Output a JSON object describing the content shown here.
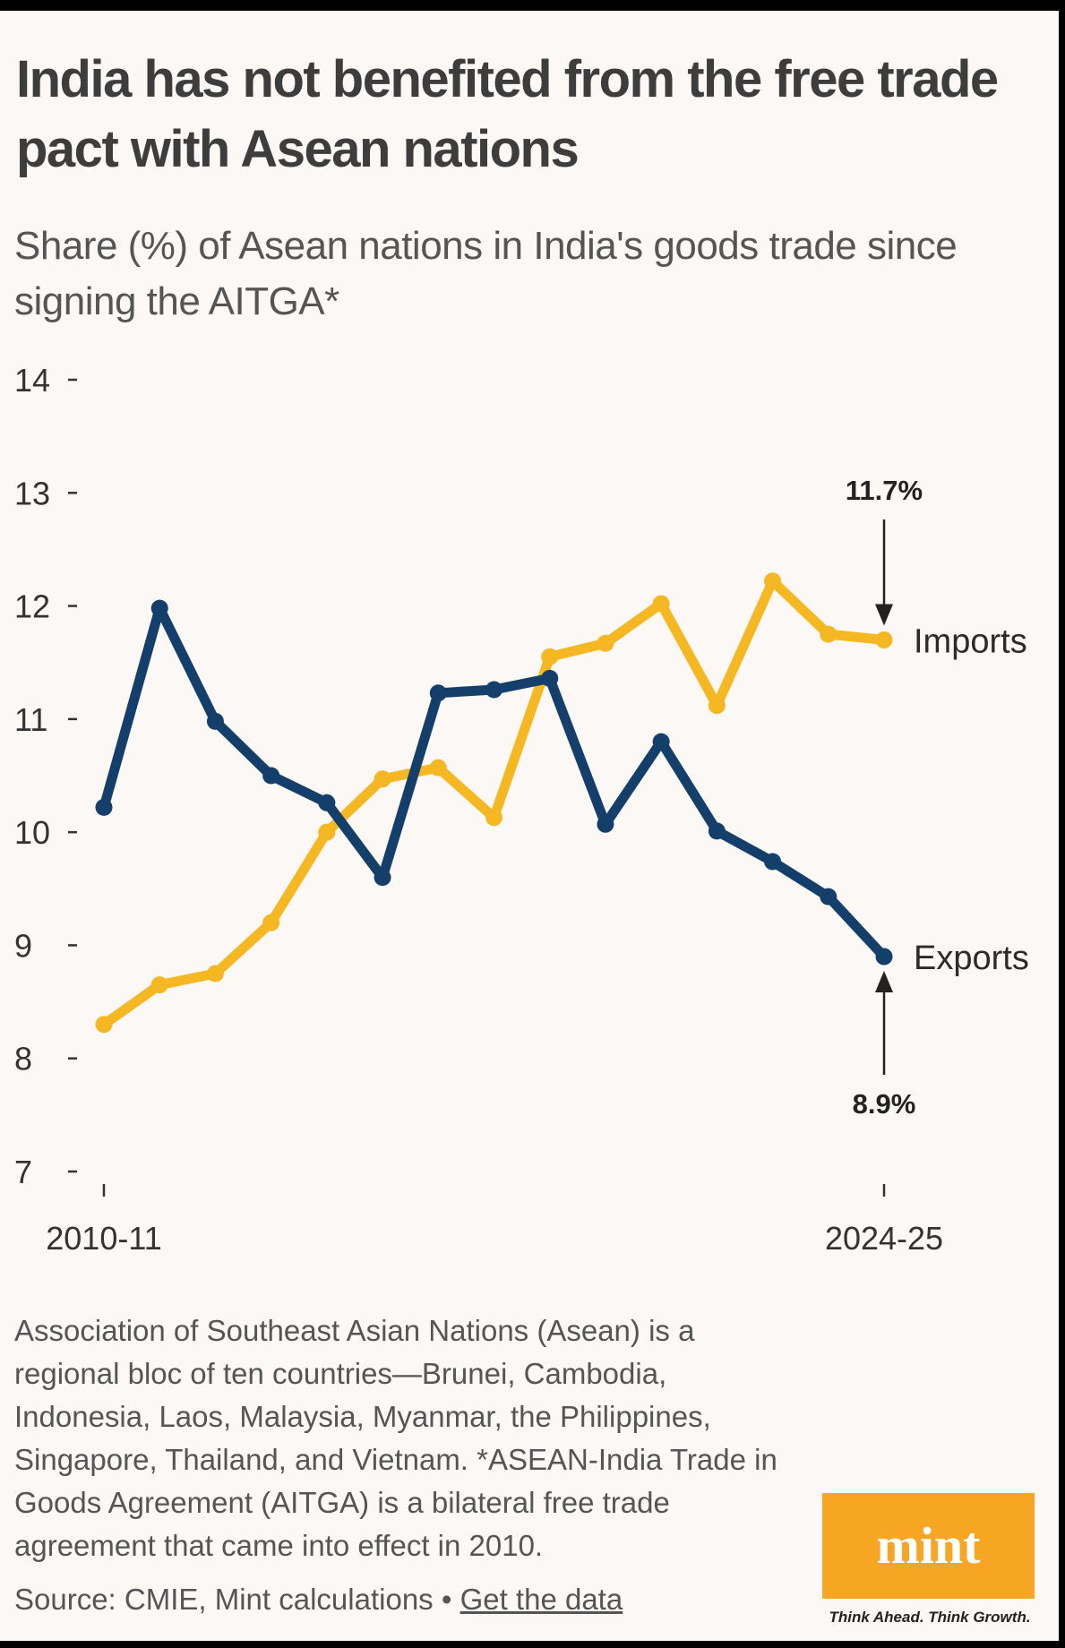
{
  "title": "India has not benefited from the free trade pact with Asean nations",
  "subtitle": "Share (%) of Asean nations in India's goods trade since signing the AITGA*",
  "colors": {
    "imports": "#f5b722",
    "exports": "#143f6b",
    "background": "#fbf8f6",
    "logo": "#f6a623"
  },
  "chart_data": {
    "type": "line",
    "title": "Share (%) of Asean nations in India's goods trade since signing the AITGA*",
    "xlabel": "",
    "ylabel": "",
    "x": [
      "2010-11",
      "2011-12",
      "2012-13",
      "2013-14",
      "2014-15",
      "2015-16",
      "2016-17",
      "2017-18",
      "2018-19",
      "2019-20",
      "2020-21",
      "2021-22",
      "2022-23",
      "2023-24",
      "2024-25"
    ],
    "x_tick_labels": [
      "2010-11",
      "2024-25"
    ],
    "ylim": [
      7,
      14
    ],
    "y_ticks": [
      7,
      8,
      9,
      10,
      11,
      12,
      13,
      14
    ],
    "series": [
      {
        "name": "Imports",
        "values": [
          8.3,
          8.65,
          8.75,
          9.2,
          10.0,
          10.47,
          10.57,
          10.13,
          11.55,
          11.67,
          12.02,
          11.12,
          12.22,
          11.75,
          11.7
        ]
      },
      {
        "name": "Exports",
        "values": [
          10.22,
          11.98,
          10.98,
          10.5,
          10.26,
          9.6,
          11.23,
          11.26,
          11.36,
          10.07,
          10.8,
          10.01,
          9.74,
          9.43,
          8.9
        ]
      }
    ],
    "annotations": [
      {
        "series": "Imports",
        "text": "11.7%"
      },
      {
        "series": "Exports",
        "text": "8.9%"
      }
    ]
  },
  "notes": "Association of Southeast Asian Nations (Asean) is a regional bloc of ten countries—Brunei, Cambodia, Indonesia, Laos, Malaysia, Myanmar, the Philippines, Singapore, Thailand, and Vietnam. *ASEAN-India Trade in Goods Agreement (AITGA) is a bilateral free trade agreement that came into effect in 2010.",
  "source": {
    "text": "Source: CMIE, Mint calculations •",
    "link": "Get the data"
  },
  "logo": {
    "name": "mint",
    "tagline": "Think Ahead. Think Growth."
  }
}
